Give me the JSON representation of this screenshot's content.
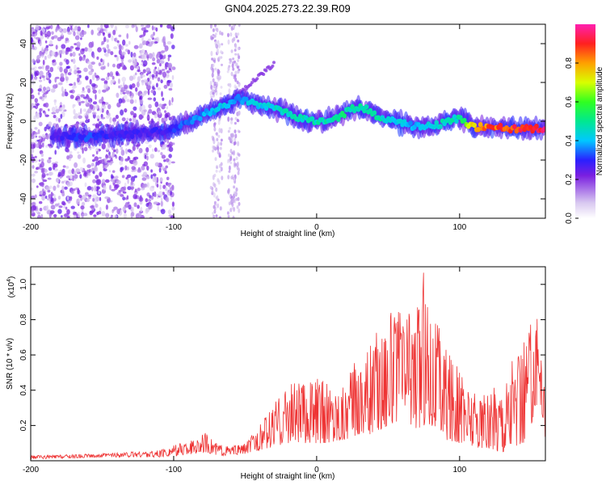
{
  "title": "GN04.2025.273.22.39.R09",
  "chart_data": [
    {
      "type": "heatmap",
      "xlabel": "Height of straight line (km)",
      "ylabel": "Frequency (Hz)",
      "xlim": [
        -200,
        160
      ],
      "ylim": [
        -50,
        50
      ],
      "xticks": [
        -200,
        -100,
        0,
        100
      ],
      "yticks": [
        -40,
        -20,
        0,
        20,
        40
      ],
      "colorbar": {
        "label": "Normalized spectral amplitude",
        "range": [
          0,
          1
        ],
        "ticks": [
          "0.0",
          "0.2",
          "0.4",
          "0.6",
          "0.8"
        ]
      },
      "ridge": {
        "x": [
          -200,
          -175,
          -160,
          -140,
          -120,
          -105,
          -95,
          -80,
          -65,
          -55,
          -45,
          -35,
          -20,
          -5,
          5,
          15,
          25,
          35,
          45,
          55,
          70,
          85,
          100,
          110,
          120,
          140,
          160
        ],
        "freq": [
          -8,
          -8,
          -8,
          -7,
          -6,
          -5,
          -2,
          3,
          8,
          12,
          9,
          8,
          4,
          0,
          0,
          2,
          7,
          6,
          2,
          0,
          -3,
          -2,
          2,
          -3,
          -3,
          -4,
          -4
        ],
        "amplitude": [
          0.25,
          0.3,
          0.35,
          0.3,
          0.3,
          0.3,
          0.35,
          0.4,
          0.45,
          0.4,
          0.45,
          0.45,
          0.5,
          0.5,
          0.5,
          0.55,
          0.5,
          0.55,
          0.5,
          0.45,
          0.4,
          0.5,
          0.5,
          0.85,
          0.9,
          0.95,
          1.0
        ]
      }
    },
    {
      "type": "line",
      "xlabel": "Height of straight line (km)",
      "ylabel": "SNR (10 * v/v)",
      "exponent_label": "(x10",
      "exponent": "4",
      "exponent_close": ")",
      "xlim": [
        -200,
        160
      ],
      "ylim": [
        0,
        1.1
      ],
      "xticks": [
        -200,
        -100,
        0,
        100
      ],
      "yticks": [
        "0.2",
        "0.4",
        "0.6",
        "0.8",
        "1.0"
      ],
      "series_color": "#ee3333",
      "envelope": {
        "x": [
          -200,
          -150,
          -110,
          -95,
          -85,
          -78,
          -70,
          -60,
          -50,
          -40,
          -30,
          -20,
          -10,
          0,
          10,
          20,
          30,
          40,
          45,
          50,
          55,
          60,
          65,
          70,
          75,
          80,
          85,
          90,
          100,
          110,
          120,
          130,
          140,
          145,
          150,
          155,
          158,
          160
        ],
        "min": [
          0.01,
          0.02,
          0.02,
          0.03,
          0.04,
          0.05,
          0.03,
          0.03,
          0.04,
          0.06,
          0.08,
          0.1,
          0.1,
          0.1,
          0.1,
          0.12,
          0.15,
          0.15,
          0.18,
          0.2,
          0.22,
          0.18,
          0.2,
          0.18,
          0.2,
          0.2,
          0.18,
          0.12,
          0.1,
          0.08,
          0.06,
          0.05,
          0.08,
          0.1,
          0.2,
          0.35,
          0.25,
          0.1
        ],
        "max": [
          0.03,
          0.04,
          0.06,
          0.1,
          0.12,
          0.16,
          0.1,
          0.08,
          0.1,
          0.2,
          0.32,
          0.46,
          0.45,
          0.48,
          0.44,
          0.45,
          0.62,
          0.7,
          0.77,
          0.9,
          0.85,
          0.88,
          0.92,
          0.88,
          1.1,
          0.9,
          0.8,
          0.7,
          0.5,
          0.4,
          0.38,
          0.5,
          0.6,
          0.7,
          0.83,
          0.8,
          0.6,
          0.35
        ]
      }
    }
  ]
}
